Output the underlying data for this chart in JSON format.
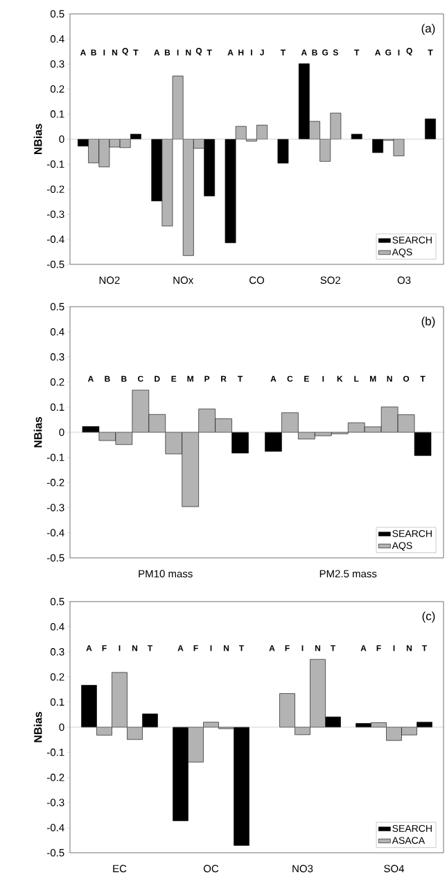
{
  "chart_data": [
    {
      "type": "bar",
      "title": "(a)",
      "ylabel": "NBias",
      "legend": "bottom right",
      "ylim": [
        -0.5,
        0.5
      ],
      "yticks": [
        -0.5,
        -0.4,
        -0.3,
        -0.2,
        -0.1,
        0,
        0.1,
        0.2,
        0.3,
        0.4,
        0.5
      ],
      "annotations": [
        "NO2",
        "NOx",
        "CO",
        "SO2",
        "O3"
      ],
      "categories": [
        "A",
        "B",
        "I",
        "N",
        "Q",
        "T",
        null,
        "A",
        "B",
        "I",
        "N",
        "Q",
        "T",
        null,
        "A",
        "H",
        "I",
        "J",
        null,
        "T",
        null,
        "A",
        "B",
        "G",
        "S",
        null,
        "T",
        null,
        "A",
        "G",
        "I",
        "Q",
        null,
        "T"
      ],
      "series": [
        {
          "name": "SEARCH",
          "color": "#000000",
          "values": [
            -0.028,
            null,
            null,
            null,
            null,
            0.02,
            null,
            -0.247,
            null,
            null,
            null,
            null,
            -0.227,
            null,
            -0.414,
            null,
            null,
            null,
            null,
            -0.096,
            null,
            0.301,
            null,
            null,
            null,
            null,
            0.02,
            null,
            -0.054,
            null,
            null,
            null,
            null,
            0.081
          ]
        },
        {
          "name": "AQS",
          "color": "#b3b3b3",
          "values": [
            null,
            -0.095,
            -0.111,
            -0.032,
            -0.034,
            null,
            null,
            null,
            -0.347,
            0.252,
            -0.465,
            -0.037,
            null,
            null,
            null,
            0.051,
            -0.008,
            0.056,
            null,
            null,
            null,
            null,
            0.071,
            -0.089,
            0.104,
            null,
            null,
            null,
            null,
            -0.005,
            -0.067,
            null,
            null,
            null
          ]
        }
      ]
    },
    {
      "type": "bar",
      "title": "(b)",
      "ylabel": "NBias",
      "legend": "bottom right",
      "ylim": [
        -0.5,
        0.5
      ],
      "yticks": [
        -0.5,
        -0.4,
        -0.3,
        -0.2,
        -0.1,
        0,
        0.1,
        0.2,
        0.3,
        0.4,
        0.5
      ],
      "annotations": [
        "PM10 mass",
        "PM2.5 mass"
      ],
      "categories": [
        "A",
        "B",
        "B",
        "C",
        "D",
        "E",
        "M",
        "P",
        "R",
        "T",
        null,
        "A",
        "C",
        "E",
        "I",
        "K",
        "L",
        "M",
        "N",
        "O",
        "T"
      ],
      "series": [
        {
          "name": "SEARCH",
          "color": "#000000",
          "values": [
            0.023,
            null,
            null,
            null,
            null,
            null,
            null,
            null,
            null,
            -0.083,
            null,
            -0.076,
            null,
            null,
            null,
            null,
            null,
            null,
            null,
            null,
            -0.093
          ]
        },
        {
          "name": "AQS",
          "color": "#b3b3b3",
          "values": [
            null,
            -0.033,
            -0.049,
            0.168,
            0.071,
            -0.086,
            -0.296,
            0.093,
            0.054,
            null,
            null,
            null,
            0.078,
            -0.027,
            -0.014,
            -0.006,
            0.038,
            0.022,
            0.101,
            0.07,
            null
          ]
        }
      ]
    },
    {
      "type": "bar",
      "title": "(c)",
      "ylabel": "NBias",
      "legend": "bottom right",
      "ylim": [
        -0.5,
        0.5
      ],
      "yticks": [
        -0.5,
        -0.4,
        -0.3,
        -0.2,
        -0.1,
        0,
        0.1,
        0.2,
        0.3,
        0.4,
        0.5
      ],
      "annotations": [
        "EC",
        "OC",
        "NO3",
        "SO4"
      ],
      "categories": [
        "A",
        "F",
        "I",
        "N",
        "T",
        null,
        "A",
        "F",
        "I",
        "N",
        "T",
        null,
        "A",
        "F",
        "I",
        "N",
        "T",
        null,
        "A",
        "F",
        "I",
        "N",
        "T"
      ],
      "series": [
        {
          "name": "SEARCH",
          "color": "#000000",
          "values": [
            0.167,
            null,
            null,
            null,
            0.053,
            null,
            -0.373,
            null,
            null,
            null,
            -0.471,
            null,
            null,
            null,
            null,
            null,
            0.041,
            null,
            0.015,
            null,
            null,
            null,
            0.02
          ]
        },
        {
          "name": "ASACA",
          "color": "#b3b3b3",
          "values": [
            null,
            -0.032,
            0.218,
            -0.049,
            null,
            null,
            null,
            -0.139,
            0.02,
            -0.006,
            null,
            null,
            null,
            0.134,
            -0.03,
            0.27,
            null,
            null,
            null,
            0.018,
            -0.053,
            -0.031,
            null
          ]
        }
      ]
    }
  ]
}
